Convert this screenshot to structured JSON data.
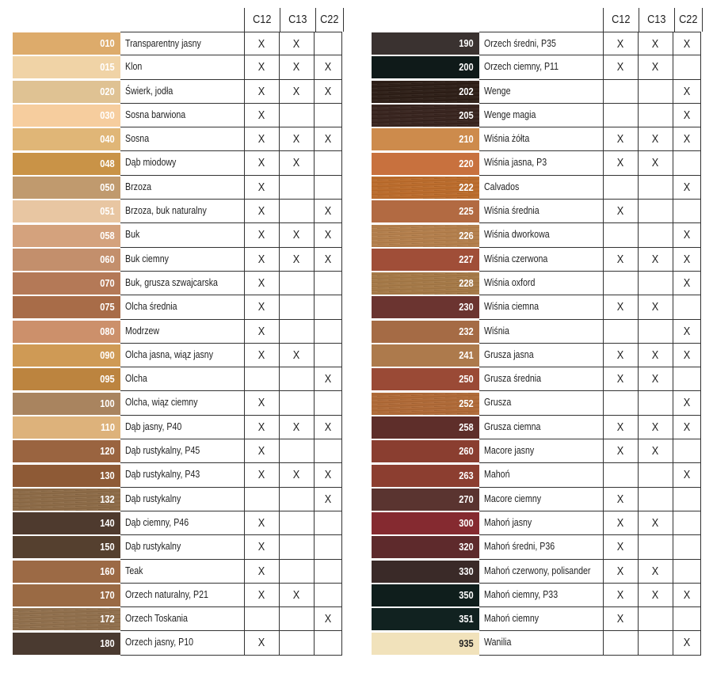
{
  "columns": [
    "C12",
    "C13",
    "C22"
  ],
  "left_table": [
    {
      "code": "010",
      "name": "Transparentny jasny",
      "color": "#ddab6b",
      "texture": "",
      "c12": "X",
      "c13": "X",
      "c22": ""
    },
    {
      "code": "015",
      "name": "Klon",
      "color": "#f0d3a6",
      "texture": "",
      "c12": "X",
      "c13": "X",
      "c22": "X"
    },
    {
      "code": "020",
      "name": "Świerk, jodła",
      "color": "#dfc293",
      "texture": "",
      "c12": "X",
      "c13": "X",
      "c22": "X"
    },
    {
      "code": "030",
      "name": "Sosna barwiona",
      "color": "#f6cd9e",
      "texture": "",
      "c12": "X",
      "c13": "",
      "c22": ""
    },
    {
      "code": "040",
      "name": "Sosna",
      "color": "#e0b677",
      "texture": "",
      "c12": "X",
      "c13": "X",
      "c22": "X"
    },
    {
      "code": "048",
      "name": "Dąb miodowy",
      "color": "#c99347",
      "texture": "",
      "c12": "X",
      "c13": "X",
      "c22": ""
    },
    {
      "code": "050",
      "name": "Brzoza",
      "color": "#c09a6e",
      "texture": "",
      "c12": "X",
      "c13": "",
      "c22": ""
    },
    {
      "code": "051",
      "name": "Brzoza, buk naturalny",
      "color": "#e8c6a2",
      "texture": "",
      "c12": "X",
      "c13": "",
      "c22": "X"
    },
    {
      "code": "058",
      "name": "Buk",
      "color": "#d4a27d",
      "texture": "",
      "c12": "X",
      "c13": "X",
      "c22": "X"
    },
    {
      "code": "060",
      "name": "Buk ciemny",
      "color": "#c38f6c",
      "texture": "",
      "c12": "X",
      "c13": "X",
      "c22": "X"
    },
    {
      "code": "070",
      "name": "Buk, grusza szwajcarska",
      "color": "#b47957",
      "texture": "",
      "c12": "X",
      "c13": "",
      "c22": ""
    },
    {
      "code": "075",
      "name": "Olcha średnia",
      "color": "#a86c48",
      "texture": "",
      "c12": "X",
      "c13": "",
      "c22": ""
    },
    {
      "code": "080",
      "name": "Modrzew",
      "color": "#cc906b",
      "texture": "",
      "c12": "X",
      "c13": "",
      "c22": ""
    },
    {
      "code": "090",
      "name": "Olcha jasna, wiąz jasny",
      "color": "#cf9a55",
      "texture": "",
      "c12": "X",
      "c13": "X",
      "c22": ""
    },
    {
      "code": "095",
      "name": "Olcha",
      "color": "#bc843f",
      "texture": "",
      "c12": "",
      "c13": "",
      "c22": "X"
    },
    {
      "code": "100",
      "name": "Olcha, wiąz ciemny",
      "color": "#a9845f",
      "texture": "",
      "c12": "X",
      "c13": "",
      "c22": ""
    },
    {
      "code": "110",
      "name": "Dąb jasny, P40",
      "color": "#ddb27b",
      "texture": "",
      "c12": "X",
      "c13": "X",
      "c22": "X"
    },
    {
      "code": "120",
      "name": "Dąb rustykalny, P45",
      "color": "#9a6440",
      "texture": "",
      "c12": "X",
      "c13": "",
      "c22": ""
    },
    {
      "code": "130",
      "name": "Dąb rustykalny, P43",
      "color": "#8e5a36",
      "texture": "",
      "c12": "X",
      "c13": "X",
      "c22": "X"
    },
    {
      "code": "132",
      "name": "Dąb rustykalny",
      "color": "#8f6b45",
      "texture": "wood-grain",
      "c12": "",
      "c13": "",
      "c22": "X"
    },
    {
      "code": "140",
      "name": "Dąb ciemny, P46",
      "color": "#4e3a2e",
      "texture": "",
      "c12": "X",
      "c13": "",
      "c22": ""
    },
    {
      "code": "150",
      "name": "Dąb rustykalny",
      "color": "#55402f",
      "texture": "",
      "c12": "X",
      "c13": "",
      "c22": ""
    },
    {
      "code": "160",
      "name": "Teak",
      "color": "#9c6a45",
      "texture": "",
      "c12": "X",
      "c13": "",
      "c22": ""
    },
    {
      "code": "170",
      "name": "Orzech naturalny, P21",
      "color": "#9a6a44",
      "texture": "",
      "c12": "X",
      "c13": "X",
      "c22": ""
    },
    {
      "code": "172",
      "name": "Orzech Toskania",
      "color": "#93704b",
      "texture": "wood-grain",
      "c12": "",
      "c13": "",
      "c22": "X"
    },
    {
      "code": "180",
      "name": "Orzech jasny, P10",
      "color": "#4a3a30",
      "texture": "",
      "c12": "X",
      "c13": "",
      "c22": ""
    }
  ],
  "right_table": [
    {
      "code": "190",
      "name": "Orzech średni, P35",
      "color": "#3a3230",
      "texture": "",
      "c12": "X",
      "c13": "X",
      "c22": "X"
    },
    {
      "code": "200",
      "name": "Orzech ciemny, P11",
      "color": "#0f1a19",
      "texture": "",
      "c12": "X",
      "c13": "X",
      "c22": ""
    },
    {
      "code": "202",
      "name": "Wenge",
      "color": "#2a1a12",
      "texture": "wood-grain",
      "c12": "",
      "c13": "",
      "c22": "X"
    },
    {
      "code": "205",
      "name": "Wenge magia",
      "color": "#35201a",
      "texture": "wood-grain",
      "c12": "",
      "c13": "",
      "c22": "X"
    },
    {
      "code": "210",
      "name": "Wiśnia żółta",
      "color": "#cd8b4c",
      "texture": "",
      "c12": "X",
      "c13": "X",
      "c22": "X"
    },
    {
      "code": "220",
      "name": "Wiśnia jasna, P3",
      "color": "#c8713e",
      "texture": "",
      "c12": "X",
      "c13": "X",
      "c22": ""
    },
    {
      "code": "222",
      "name": "Calvados",
      "color": "#c06c28",
      "texture": "wood-grain",
      "c12": "",
      "c13": "",
      "c22": "X"
    },
    {
      "code": "225",
      "name": "Wiśnia średnia",
      "color": "#b26a42",
      "texture": "",
      "c12": "X",
      "c13": "",
      "c22": ""
    },
    {
      "code": "226",
      "name": "Wiśnia dworkowa",
      "color": "#b8804a",
      "texture": "wood-grain",
      "c12": "",
      "c13": "",
      "c22": "X"
    },
    {
      "code": "227",
      "name": "Wiśnia czerwona",
      "color": "#a04e38",
      "texture": "",
      "c12": "X",
      "c13": "X",
      "c22": "X"
    },
    {
      "code": "228",
      "name": "Wiśnia oxford",
      "color": "#a97a45",
      "texture": "wood-grain",
      "c12": "",
      "c13": "",
      "c22": "X"
    },
    {
      "code": "230",
      "name": "Wiśnia ciemna",
      "color": "#6b3430",
      "texture": "",
      "c12": "X",
      "c13": "X",
      "c22": ""
    },
    {
      "code": "232",
      "name": "Wiśnia",
      "color": "#a56b45",
      "texture": "",
      "c12": "",
      "c13": "",
      "c22": "X"
    },
    {
      "code": "241",
      "name": "Grusza jasna",
      "color": "#ad7a4c",
      "texture": "",
      "c12": "X",
      "c13": "X",
      "c22": "X"
    },
    {
      "code": "250",
      "name": "Grusza średnia",
      "color": "#9a4a36",
      "texture": "",
      "c12": "X",
      "c13": "X",
      "c22": ""
    },
    {
      "code": "252",
      "name": "Grusza",
      "color": "#b46a34",
      "texture": "wood-grain",
      "c12": "",
      "c13": "",
      "c22": "X"
    },
    {
      "code": "258",
      "name": "Grusza ciemna",
      "color": "#5e2e2a",
      "texture": "",
      "c12": "X",
      "c13": "X",
      "c22": "X"
    },
    {
      "code": "260",
      "name": "Macore jasny",
      "color": "#8a3e30",
      "texture": "",
      "c12": "X",
      "c13": "X",
      "c22": ""
    },
    {
      "code": "263",
      "name": "Mahoń",
      "color": "#8c3e30",
      "texture": "",
      "c12": "",
      "c13": "",
      "c22": "X"
    },
    {
      "code": "270",
      "name": "Macore ciemny",
      "color": "#5a3430",
      "texture": "",
      "c12": "X",
      "c13": "",
      "c22": ""
    },
    {
      "code": "300",
      "name": "Mahoń jasny",
      "color": "#852a30",
      "texture": "",
      "c12": "X",
      "c13": "X",
      "c22": ""
    },
    {
      "code": "320",
      "name": "Mahoń średni, P36",
      "color": "#5e2a2c",
      "texture": "",
      "c12": "X",
      "c13": "",
      "c22": ""
    },
    {
      "code": "330",
      "name": "Mahoń czerwony, polisander",
      "color": "#3a2a28",
      "texture": "",
      "c12": "X",
      "c13": "X",
      "c22": ""
    },
    {
      "code": "350",
      "name": "Mahoń ciemny, P33",
      "color": "#0f1e1c",
      "texture": "",
      "c12": "X",
      "c13": "X",
      "c22": "X"
    },
    {
      "code": "351",
      "name": "Mahoń ciemny",
      "color": "#112220",
      "texture": "",
      "c12": "X",
      "c13": "",
      "c22": ""
    },
    {
      "code": "935",
      "name": "Wanilia",
      "color": "#f1e2bb",
      "texture": "",
      "c12": "",
      "c13": "",
      "c22": "X",
      "code_color": "#222222"
    }
  ]
}
